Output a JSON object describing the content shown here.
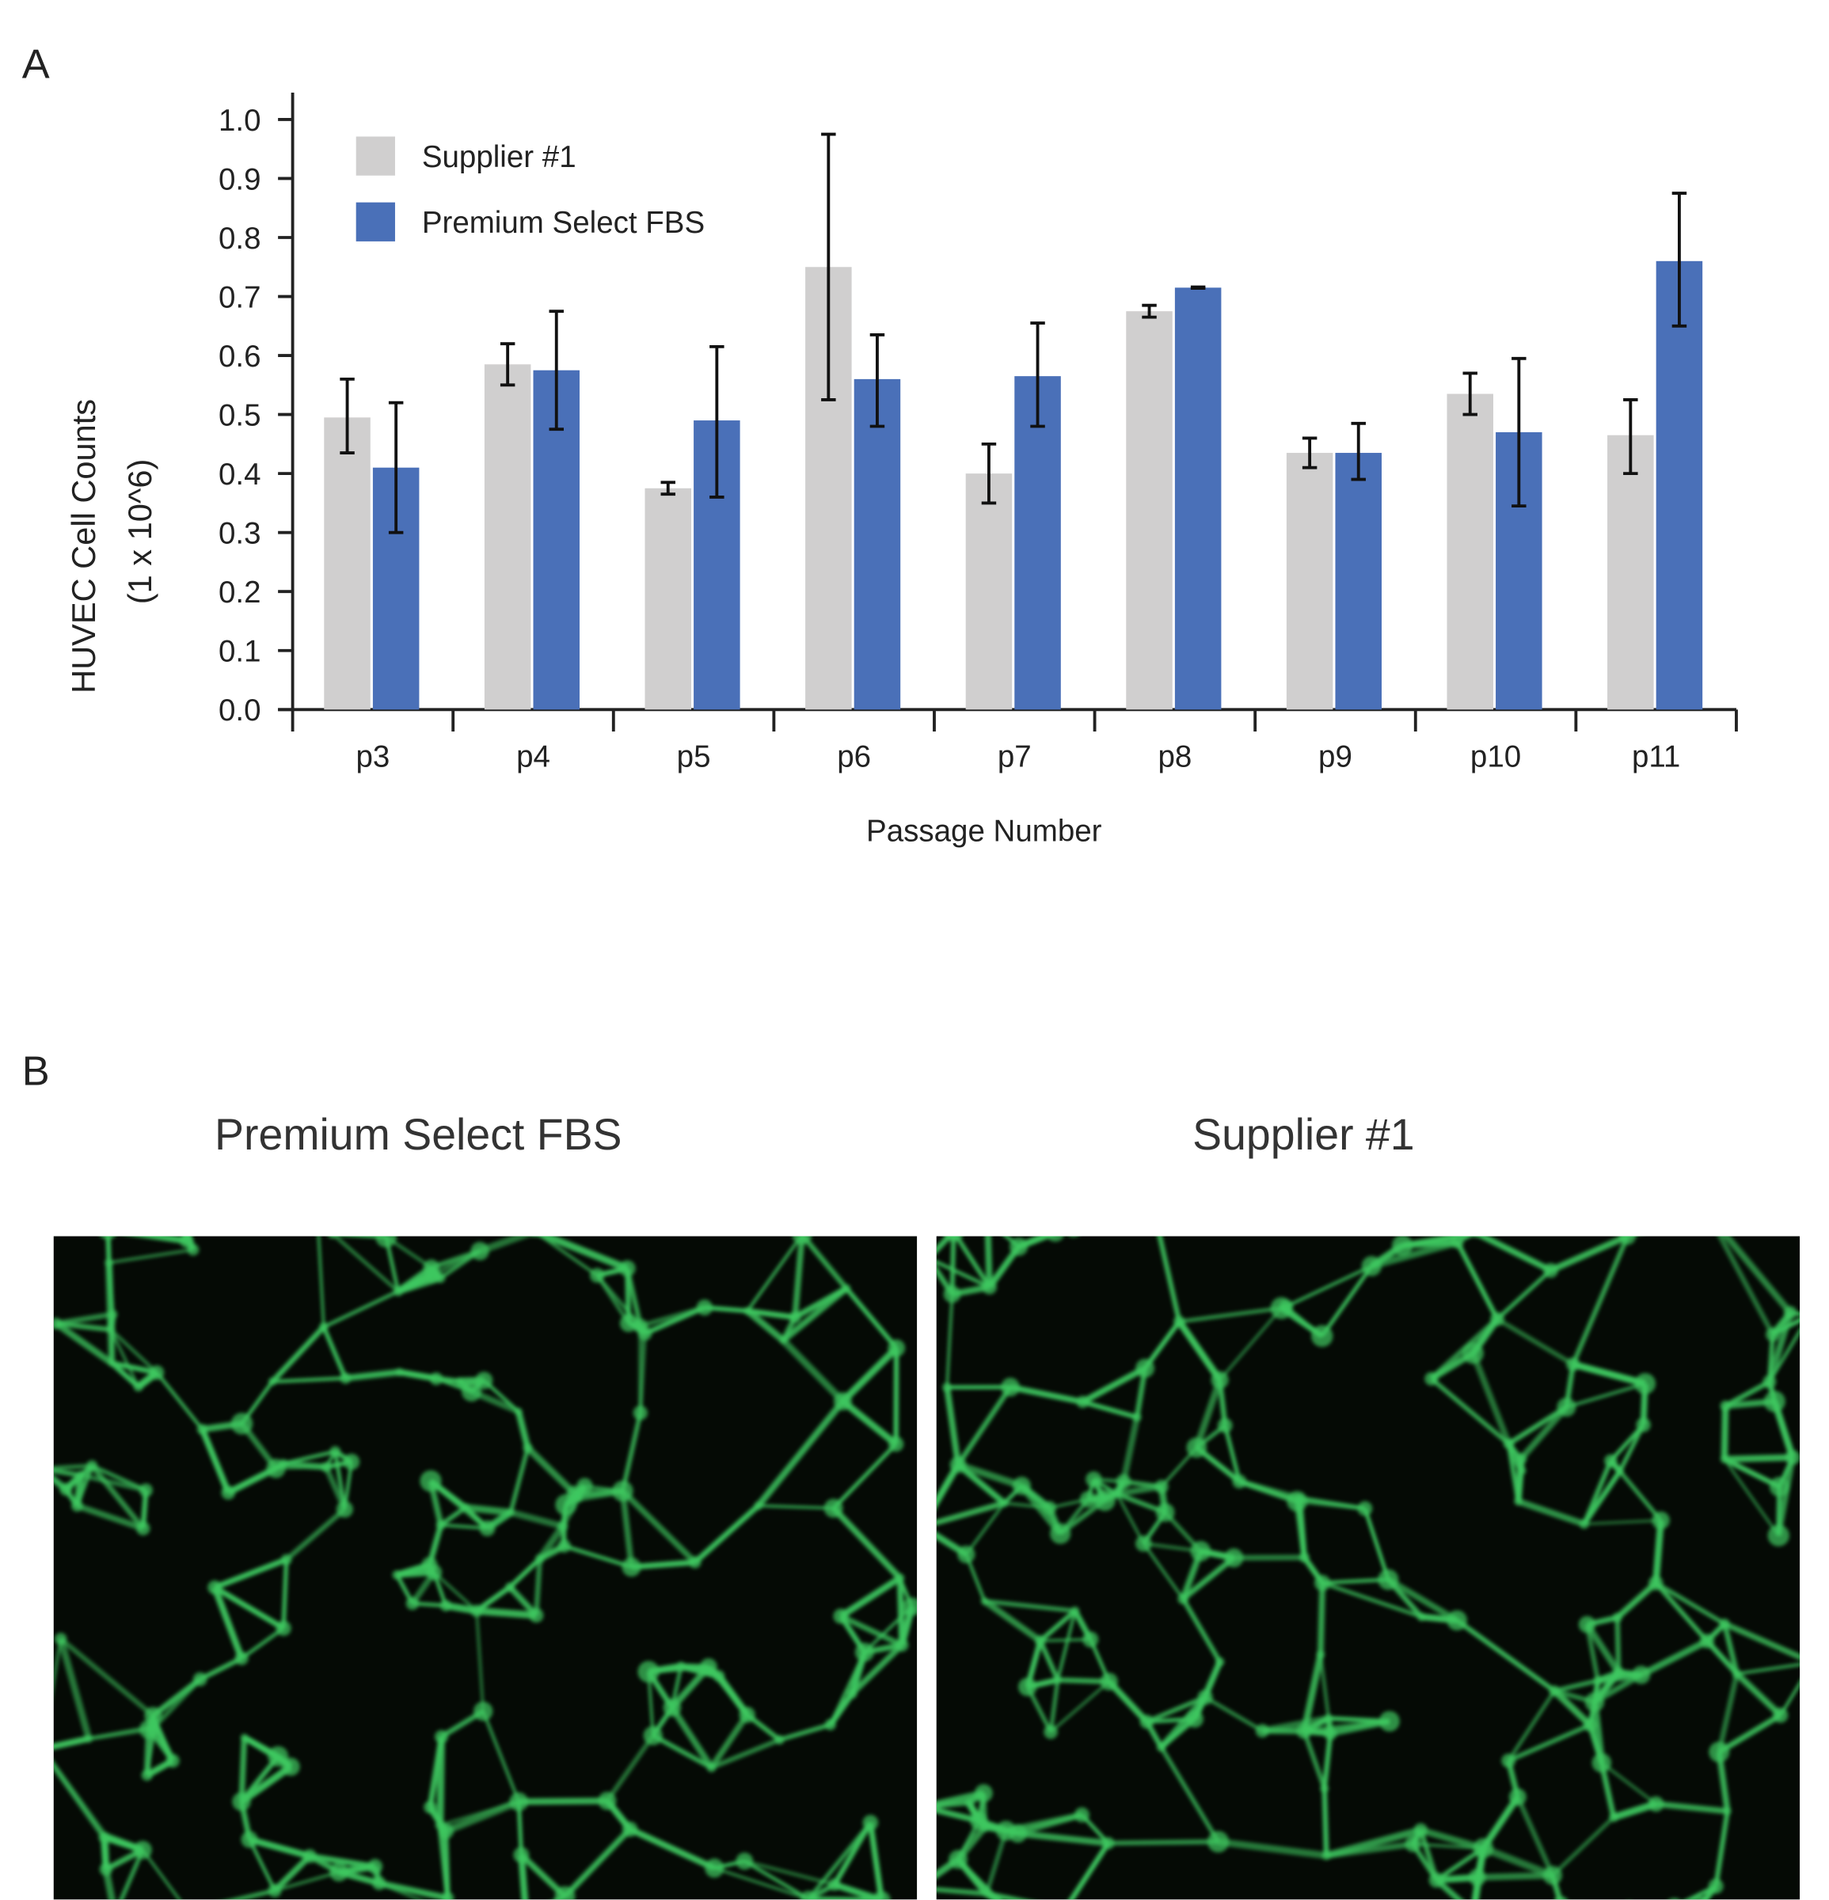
{
  "panel_a_label": "A",
  "panel_b_label": "B",
  "chart_data": {
    "type": "bar",
    "title": "",
    "xlabel": "Passage Number",
    "ylabel": "HUVEC Cell Counts",
    "ylabel2": "(1 x 10^6)",
    "ylim": [
      0,
      1.0
    ],
    "yticks": [
      "0.0",
      "0.1",
      "0.2",
      "0.3",
      "0.4",
      "0.5",
      "0.6",
      "0.7",
      "0.8",
      "0.9",
      "1.0"
    ],
    "grid": false,
    "legend_position": "top-left",
    "categories": [
      "p3",
      "p4",
      "p5",
      "p6",
      "p7",
      "p8",
      "p9",
      "p10",
      "p11"
    ],
    "series": [
      {
        "name": "Supplier #1",
        "color": "#d0cfcf",
        "values": [
          0.495,
          0.585,
          0.375,
          0.75,
          0.4,
          0.675,
          0.435,
          0.535,
          0.465
        ],
        "error_low": [
          0.435,
          0.55,
          0.365,
          0.525,
          0.35,
          0.665,
          0.41,
          0.5,
          0.4
        ],
        "error_high": [
          0.56,
          0.62,
          0.385,
          0.975,
          0.45,
          0.685,
          0.46,
          0.57,
          0.525
        ]
      },
      {
        "name": "Premium Select FBS",
        "color": "#4a70b8",
        "values": [
          0.41,
          0.575,
          0.49,
          0.56,
          0.565,
          0.715,
          0.435,
          0.47,
          0.76
        ],
        "error_low": [
          0.3,
          0.475,
          0.36,
          0.48,
          0.48,
          0.714,
          0.39,
          0.345,
          0.65
        ],
        "error_high": [
          0.52,
          0.675,
          0.615,
          0.635,
          0.655,
          0.716,
          0.485,
          0.595,
          0.875
        ]
      }
    ]
  },
  "images": [
    {
      "title": "Premium Select FBS",
      "stain_color": "#3ec860"
    },
    {
      "title": "Supplier #1",
      "stain_color": "#3ec860"
    }
  ]
}
